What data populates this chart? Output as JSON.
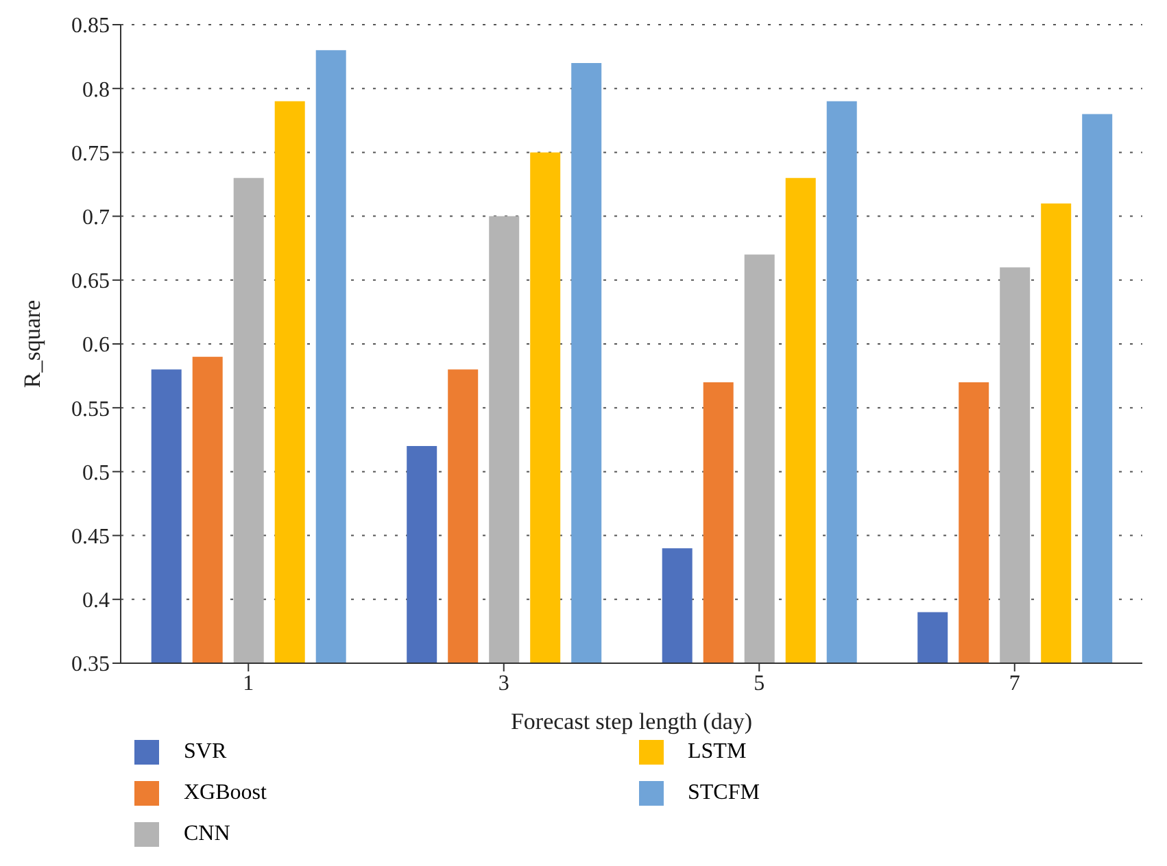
{
  "chart_data": {
    "type": "bar",
    "xlabel": "Forecast step length (day)",
    "ylabel": "R_square",
    "categories": [
      "1",
      "3",
      "5",
      "7"
    ],
    "series": [
      {
        "name": "SVR",
        "color": "#4e71be",
        "values": [
          0.58,
          0.52,
          0.44,
          0.39
        ]
      },
      {
        "name": "XGBoost",
        "color": "#ed7d31",
        "values": [
          0.59,
          0.58,
          0.57,
          0.57
        ]
      },
      {
        "name": "CNN",
        "color": "#b4b4b4",
        "values": [
          0.73,
          0.7,
          0.67,
          0.66
        ]
      },
      {
        "name": "LSTM",
        "color": "#ffc000",
        "values": [
          0.79,
          0.75,
          0.73,
          0.71
        ]
      },
      {
        "name": "STCFM",
        "color": "#70a4d8",
        "values": [
          0.83,
          0.82,
          0.79,
          0.78
        ]
      }
    ],
    "ylim": [
      0.35,
      0.85
    ],
    "yticks": [
      0.35,
      0.4,
      0.45,
      0.5,
      0.55,
      0.6,
      0.65,
      0.7,
      0.75,
      0.8,
      0.85
    ],
    "grid": "y",
    "legend": "bottom"
  }
}
